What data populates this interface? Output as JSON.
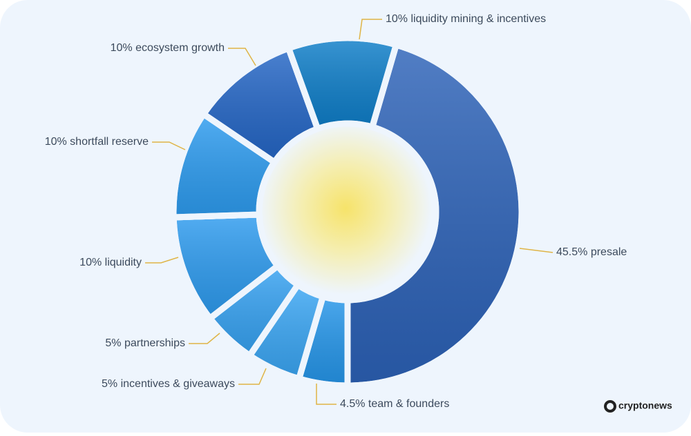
{
  "chart_data": {
    "type": "donut",
    "labels": [
      "45.5% presale",
      "4.5% team & founders",
      "5% incentives & giveaways",
      "5% partnerships",
      "10% liquidity",
      "10% shortfall reserve",
      "10% ecosystem growth",
      "10% liquidity mining & incentives"
    ],
    "values": [
      45.5,
      4.5,
      5,
      5,
      10,
      10,
      10,
      10
    ],
    "colors": [
      "#2c62b8",
      "#2596ea",
      "#3aa6f4",
      "#36a2f2",
      "#2d9bef",
      "#2d9cf0",
      "#2466c6",
      "#0e7ec9"
    ],
    "watermark": "cryptonews"
  }
}
